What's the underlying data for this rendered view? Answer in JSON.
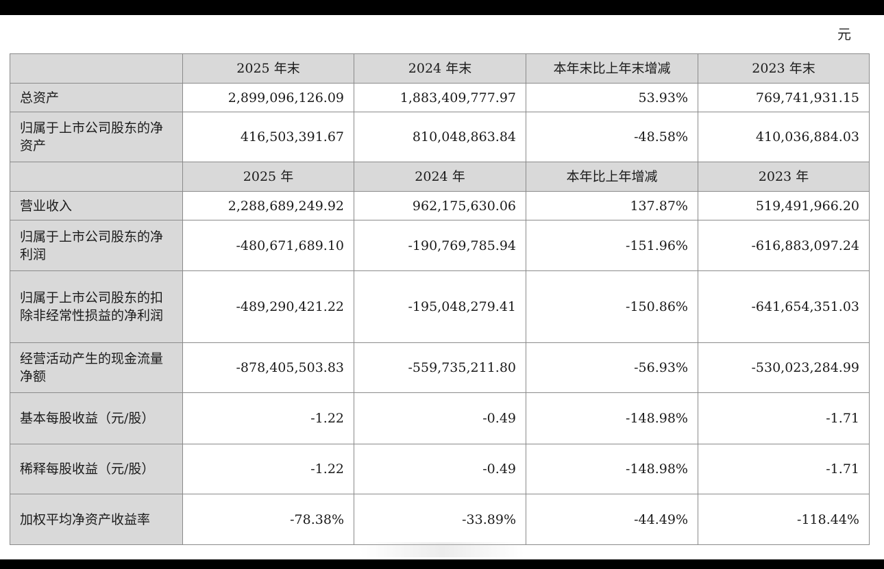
{
  "unit": "元",
  "balance_header": [
    "",
    "2025 年末",
    "2024 年末",
    "本年末比上年末增减",
    "2023 年末"
  ],
  "balance_rows": [
    {
      "label": "总资产",
      "values": [
        "2,899,096,126.09",
        "1,883,409,777.97",
        "53.93%",
        "769,741,931.15"
      ]
    },
    {
      "label": "归属于上市公司股东的净资产",
      "values": [
        "416,503,391.67",
        "810,048,863.84",
        "-48.58%",
        "410,036,884.03"
      ]
    }
  ],
  "income_header": [
    "",
    "2025 年",
    "2024 年",
    "本年比上年增减",
    "2023 年"
  ],
  "income_rows": [
    {
      "label": "营业收入",
      "values": [
        "2,288,689,249.92",
        "962,175,630.06",
        "137.87%",
        "519,491,966.20"
      ]
    },
    {
      "label": "归属于上市公司股东的净利润",
      "values": [
        "-480,671,689.10",
        "-190,769,785.94",
        "-151.96%",
        "-616,883,097.24"
      ]
    },
    {
      "label": "归属于上市公司股东的扣除非经常性损益的净利润",
      "values": [
        "-489,290,421.22",
        "-195,048,279.41",
        "-150.86%",
        "-641,654,351.03"
      ]
    },
    {
      "label": "经营活动产生的现金流量净额",
      "values": [
        "-878,405,503.83",
        "-559,735,211.80",
        "-56.93%",
        "-530,023,284.99"
      ]
    },
    {
      "label": "基本每股收益（元/股）",
      "values": [
        "-1.22",
        "-0.49",
        "-148.98%",
        "-1.71"
      ]
    },
    {
      "label": "稀释每股收益（元/股）",
      "values": [
        "-1.22",
        "-0.49",
        "-148.98%",
        "-1.71"
      ]
    },
    {
      "label": "加权平均净资产收益率",
      "values": [
        "-78.38%",
        "-33.89%",
        "-44.49%",
        "-118.44%"
      ]
    }
  ]
}
